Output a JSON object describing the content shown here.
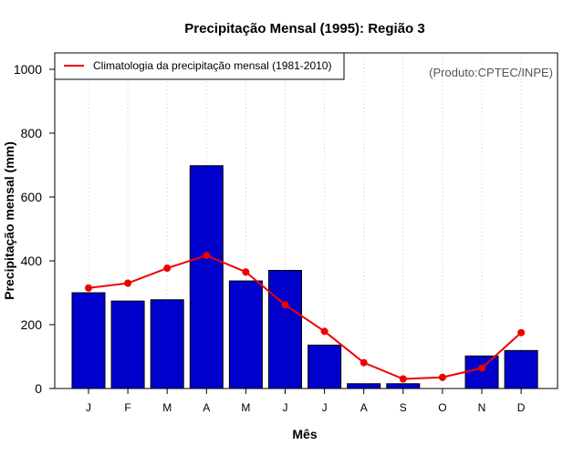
{
  "chart_data": {
    "type": "bar",
    "title": "Precipitação Mensal (1995): Região 3",
    "xlabel": "Mês",
    "ylabel": "Precipitação mensal (mm)",
    "ylim": [
      0,
      1050
    ],
    "yticks": [
      0,
      200,
      400,
      600,
      800,
      1000
    ],
    "grid": "vertical dotted",
    "categories": [
      "J",
      "F",
      "M",
      "A",
      "M",
      "J",
      "J",
      "A",
      "S",
      "O",
      "N",
      "D"
    ],
    "series": [
      {
        "name": "Precipitação mensal (1995)",
        "kind": "bar",
        "color": "#0000CC",
        "values": [
          300,
          274,
          278,
          698,
          337,
          370,
          136,
          15,
          15,
          0,
          102,
          119
        ]
      },
      {
        "name": "Climatologia da precipitação mensal (1981-2010)",
        "kind": "line",
        "color": "#EE0000",
        "values": [
          315,
          330,
          377,
          417,
          365,
          262,
          179,
          81,
          30,
          35,
          64,
          175
        ]
      }
    ],
    "legend": {
      "position": "top-left",
      "entries": [
        "Climatologia da precipitação mensal (1981-2010)"
      ]
    },
    "annotation": "(Produto:CPTEC/INPE)"
  }
}
